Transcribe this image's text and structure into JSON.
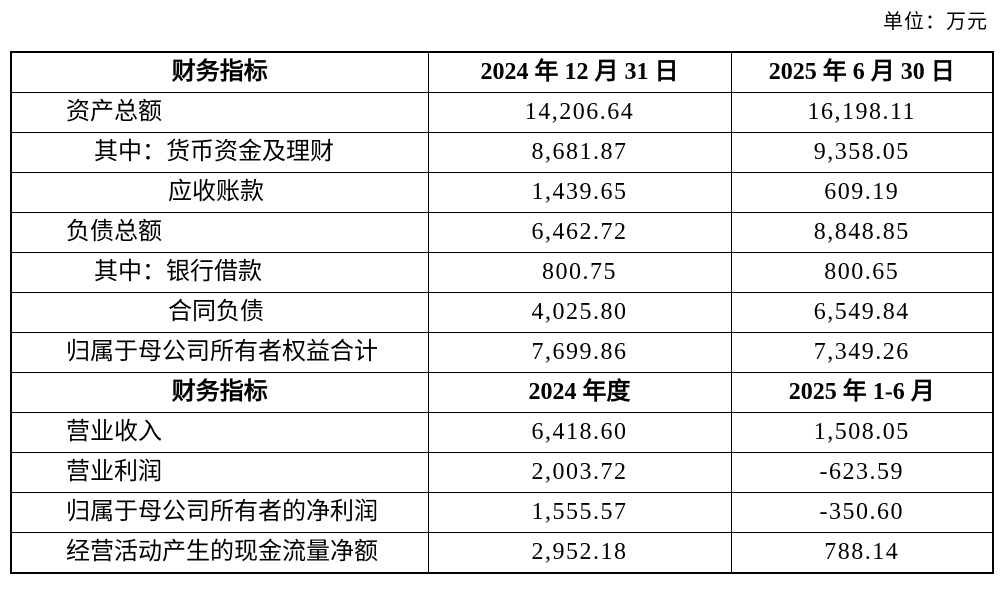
{
  "unit_label": "单位：万元",
  "table": {
    "sections": [
      {
        "header": {
          "indicator": "财务指标",
          "col1": "2024 年 12 月 31 日",
          "col2": "2025 年 6 月 30 日"
        },
        "rows": [
          {
            "label": "资产总额",
            "indent": 0,
            "col1": "14,206.64",
            "col2": "16,198.11"
          },
          {
            "label": "其中：货币资金及理财",
            "indent": 1,
            "col1": "8,681.87",
            "col2": "9,358.05"
          },
          {
            "label": "应收账款",
            "indent": 2,
            "col1": "1,439.65",
            "col2": "609.19"
          },
          {
            "label": "负债总额",
            "indent": 0,
            "col1": "6,462.72",
            "col2": "8,848.85"
          },
          {
            "label": "其中：银行借款",
            "indent": 1,
            "col1": "800.75",
            "col2": "800.65"
          },
          {
            "label": "合同负债",
            "indent": 2,
            "col1": "4,025.80",
            "col2": "6,549.84"
          },
          {
            "label": "归属于母公司所有者权益合计",
            "indent": 0,
            "col1": "7,699.86",
            "col2": "7,349.26"
          }
        ]
      },
      {
        "header": {
          "indicator": "财务指标",
          "col1": "2024 年度",
          "col2": "2025 年 1-6 月"
        },
        "rows": [
          {
            "label": "营业收入",
            "indent": 0,
            "col1": "6,418.60",
            "col2": "1,508.05"
          },
          {
            "label": "营业利润",
            "indent": 0,
            "col1": "2,003.72",
            "col2": "-623.59"
          },
          {
            "label": "归属于母公司所有者的净利润",
            "indent": 0,
            "col1": "1,555.57",
            "col2": "-350.60"
          },
          {
            "label": "经营活动产生的现金流量净额",
            "indent": 0,
            "col1": "2,952.18",
            "col2": "788.14"
          }
        ]
      }
    ]
  }
}
